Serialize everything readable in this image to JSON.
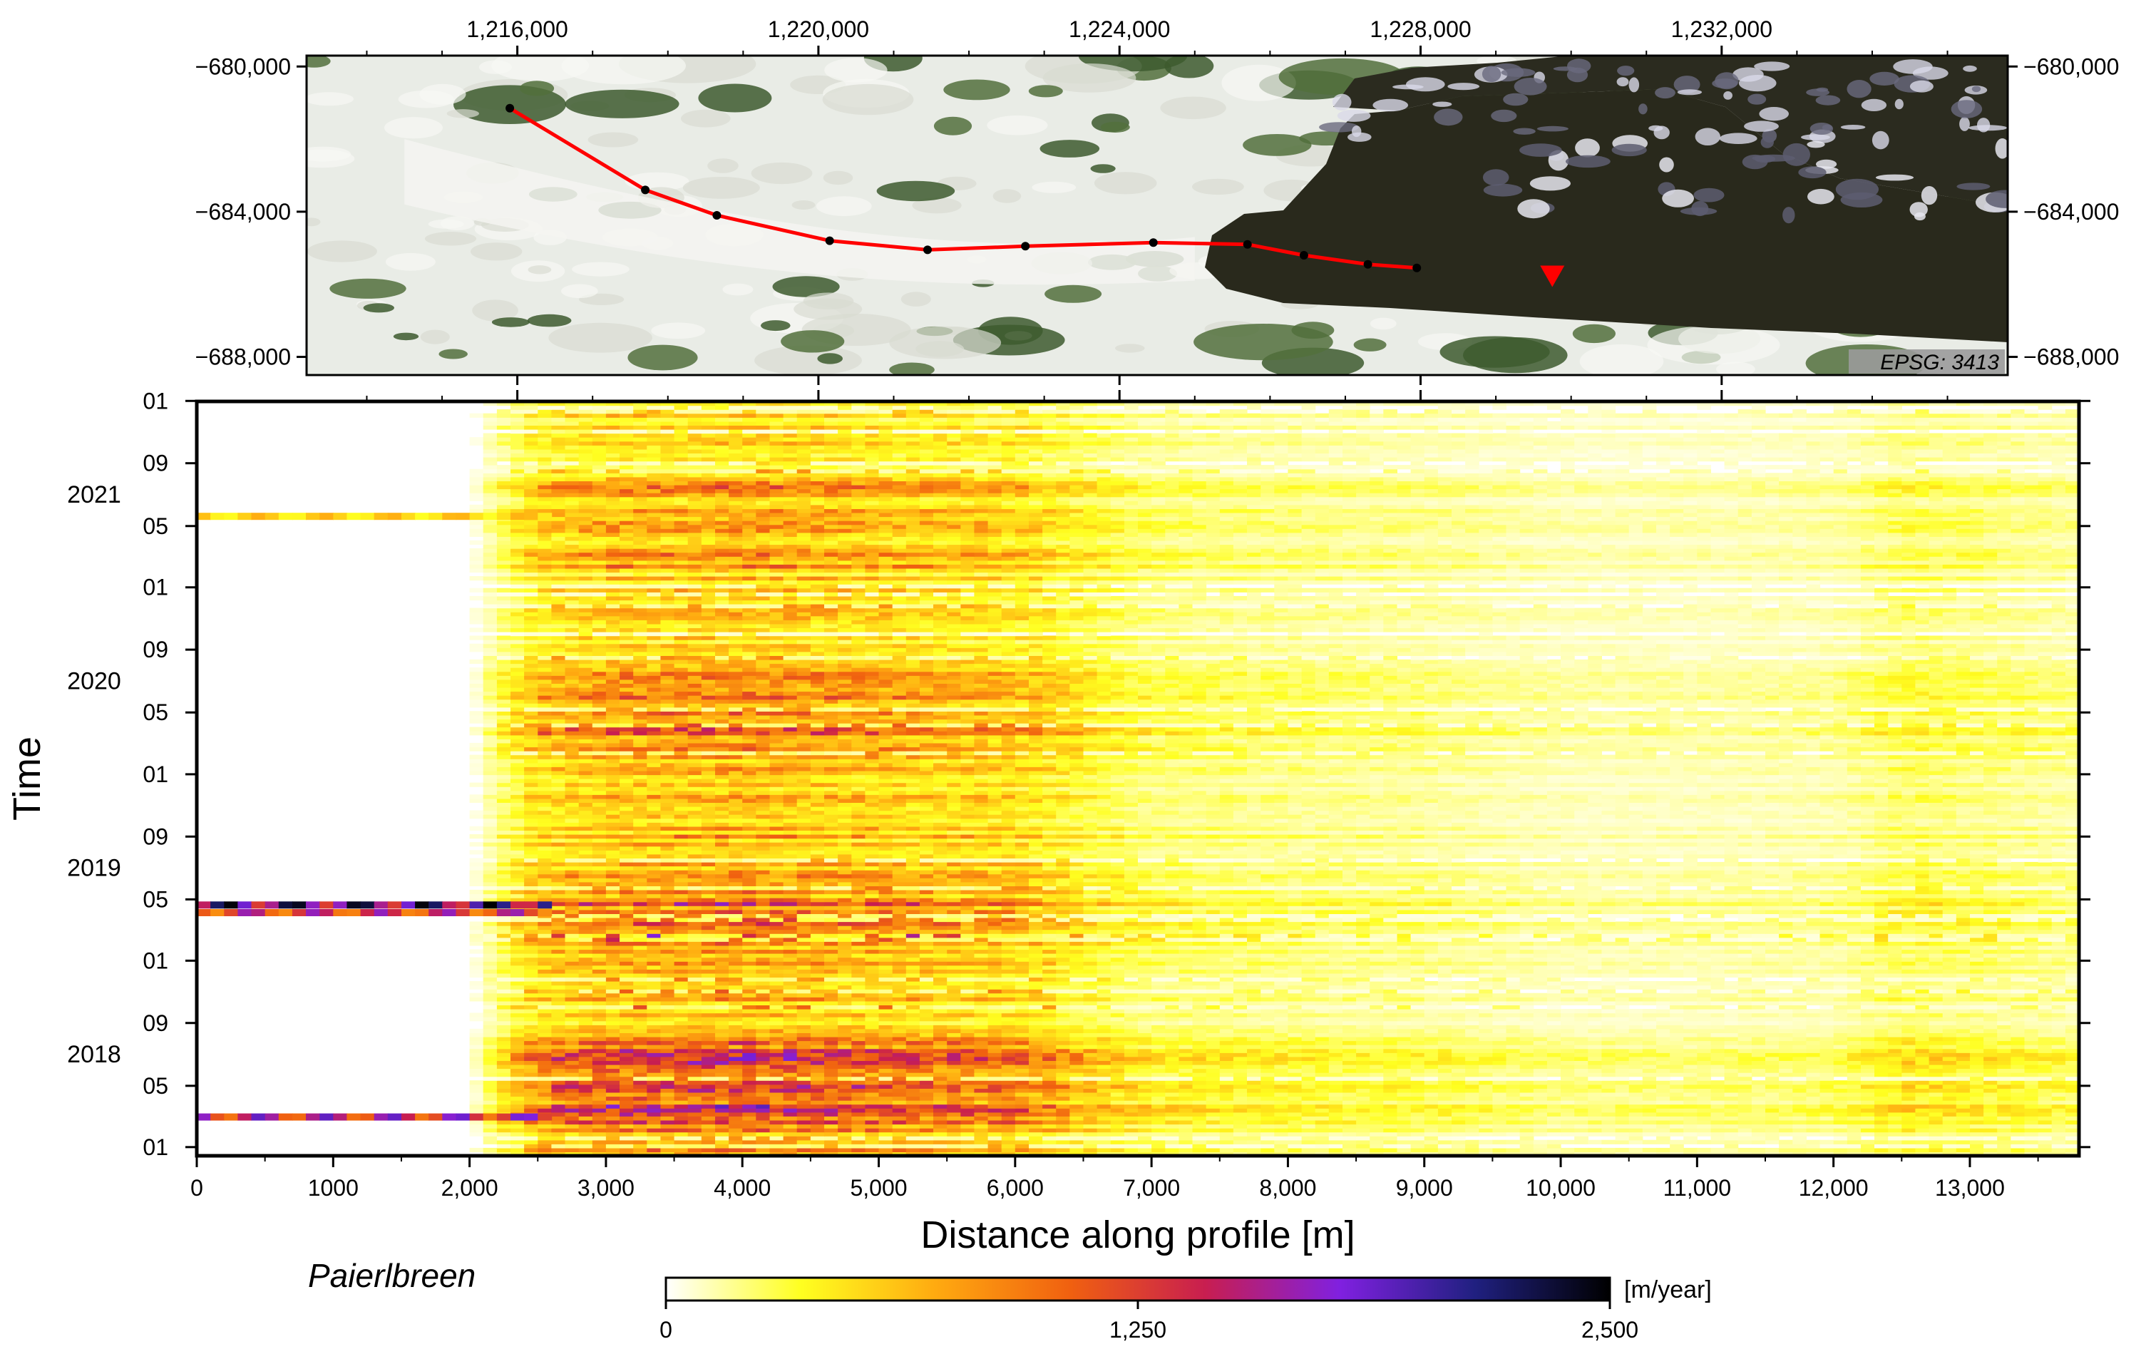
{
  "glacier_label": "Paierlbreen",
  "epsg_label": "EPSG: 3413",
  "colors": {
    "profile_line": "#ff0000",
    "marker": "#ff0000",
    "water": "#2a2a1e",
    "ice": "#eef0ea",
    "rock": "#3c5a2c"
  },
  "map": {
    "x_ticks": [
      "1,216,000",
      "1,220,000",
      "1,224,000",
      "1,228,000",
      "1,232,000"
    ],
    "y_ticks": [
      "−680,000",
      "−684,000",
      "−688,000"
    ],
    "x_range": [
      1213200,
      1235800
    ],
    "y_range": [
      -688500,
      -679700
    ],
    "profile_line": [
      [
        1215900,
        -681150
      ],
      [
        1217700,
        -683400
      ],
      [
        1218650,
        -684100
      ],
      [
        1220150,
        -684800
      ],
      [
        1221450,
        -685050
      ],
      [
        1222750,
        -684950
      ],
      [
        1224450,
        -684850
      ],
      [
        1225700,
        -684900
      ],
      [
        1226450,
        -685200
      ],
      [
        1227300,
        -685450
      ],
      [
        1227950,
        -685550
      ]
    ],
    "marker_point": [
      1229750,
      -685800
    ]
  },
  "chart_data": {
    "type": "heatmap",
    "title": "",
    "xlabel": "Distance along profile [m]",
    "ylabel": "Time",
    "x_range": [
      0,
      13800
    ],
    "x_ticks": [
      0,
      1000,
      2000,
      3000,
      4000,
      5000,
      6000,
      7000,
      8000,
      9000,
      10000,
      11000,
      12000,
      13000
    ],
    "x_tick_labels": [
      "0",
      "1000",
      "2,000",
      "3,000",
      "4,000",
      "5,000",
      "6,000",
      "7,000",
      "8,000",
      "9,000",
      "10,000",
      "11,000",
      "12,000",
      "13,000"
    ],
    "time_range": [
      "2017-12-15",
      "2021-12-31"
    ],
    "month_ticks": [
      {
        "date": "2018-01-01",
        "label": "01"
      },
      {
        "date": "2018-05-01",
        "label": "05"
      },
      {
        "date": "2018-09-01",
        "label": "09"
      },
      {
        "date": "2019-01-01",
        "label": "01"
      },
      {
        "date": "2019-05-01",
        "label": "05"
      },
      {
        "date": "2019-09-01",
        "label": "09"
      },
      {
        "date": "2020-01-01",
        "label": "01"
      },
      {
        "date": "2020-05-01",
        "label": "05"
      },
      {
        "date": "2020-09-01",
        "label": "09"
      },
      {
        "date": "2021-01-01",
        "label": "01"
      },
      {
        "date": "2021-05-01",
        "label": "05"
      },
      {
        "date": "2021-09-01",
        "label": "09"
      },
      {
        "date": "2022-01-01",
        "label": "01"
      }
    ],
    "year_labels": [
      {
        "date": "2018-07-01",
        "label": "2018"
      },
      {
        "date": "2019-07-01",
        "label": "2019"
      },
      {
        "date": "2020-07-01",
        "label": "2020"
      },
      {
        "date": "2021-07-01",
        "label": "2021"
      }
    ],
    "colorbar": {
      "label": "[m/year]",
      "min": 0,
      "max": 2500,
      "ticks": [
        0,
        1250,
        2500
      ],
      "tick_labels": [
        "0",
        "1,250",
        "2,500"
      ],
      "stops": [
        "#ffffff",
        "#ffff20",
        "#ffaa10",
        "#f06010",
        "#c81e50",
        "#8020e0",
        "#202080",
        "#000000"
      ]
    },
    "profile_velocity_m_per_year": {
      "x": [
        0,
        1000,
        2000,
        2500,
        3000,
        4000,
        5000,
        6000,
        6500,
        7000,
        8000,
        9000,
        10000,
        11000,
        12000,
        12500,
        13000,
        13800
      ],
      "v": [
        0,
        0,
        0,
        650,
        800,
        850,
        750,
        650,
        450,
        300,
        250,
        220,
        150,
        150,
        180,
        320,
        280,
        200
      ]
    },
    "high_velocity_bands": [
      {
        "date": "2018-03-01",
        "x_range": [
          0,
          2600
        ],
        "max_velocity": 1900
      },
      {
        "date": "2019-04-20",
        "x_range": [
          0,
          2600
        ],
        "max_velocity": 2500
      },
      {
        "date": "2019-04-05",
        "x_range": [
          0,
          2600
        ],
        "max_velocity": 1700
      },
      {
        "date": "2021-05-20",
        "x_range": [
          0,
          2600
        ],
        "max_velocity": 700
      }
    ]
  }
}
